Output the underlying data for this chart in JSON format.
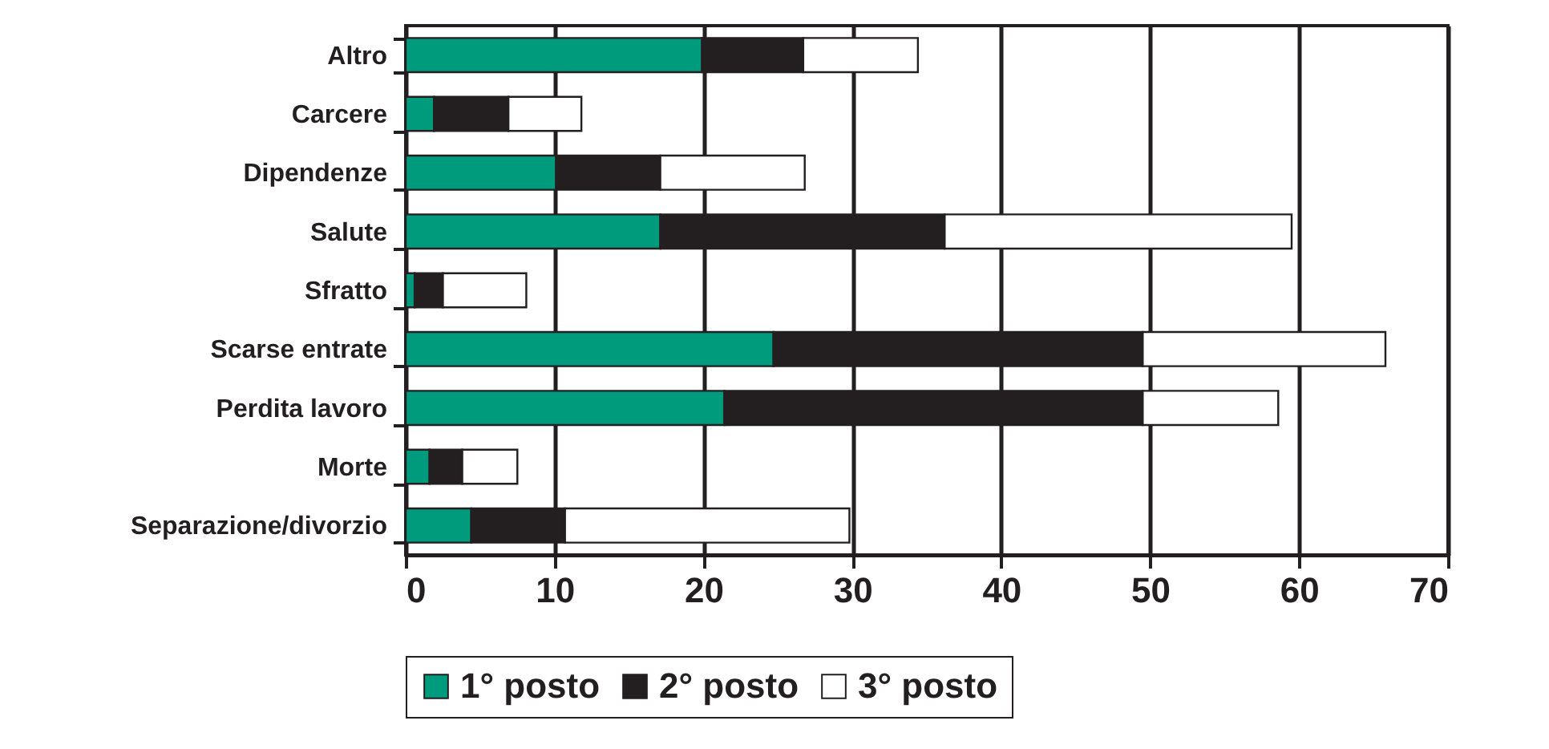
{
  "chart_data": {
    "type": "bar",
    "orientation": "horizontal",
    "stacked": true,
    "categories": [
      "Altro",
      "Carcere",
      "Dipendenze",
      "Salute",
      "Sfratto",
      "Scarse entrate",
      "Perdita lavoro",
      "Morte",
      "Separazione/divorzio"
    ],
    "series": [
      {
        "name": "1° posto",
        "color": "#009b7d",
        "values": [
          19.9,
          1.9,
          10.1,
          17.1,
          0.6,
          24.7,
          21.4,
          1.6,
          4.4
        ]
      },
      {
        "name": "2° posto",
        "color": "#231f20",
        "values": [
          6.8,
          5.0,
          7.0,
          19.1,
          1.9,
          24.8,
          28.1,
          2.2,
          6.3
        ]
      },
      {
        "name": "3° posto",
        "color": "#ffffff",
        "values": [
          7.7,
          4.9,
          9.7,
          23.3,
          5.6,
          16.3,
          9.1,
          3.7,
          19.1
        ]
      }
    ],
    "xlim": [
      0,
      70
    ],
    "xticks": [
      0,
      10,
      20,
      30,
      40,
      50,
      60,
      70
    ],
    "grid": "x",
    "legend": "bottom"
  }
}
